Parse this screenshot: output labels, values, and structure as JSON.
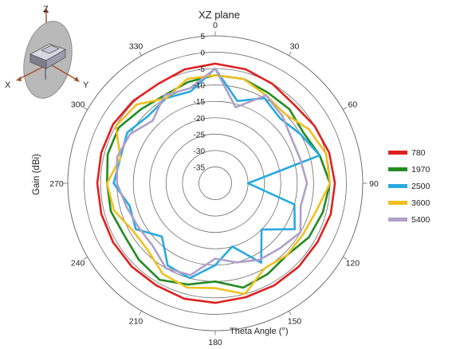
{
  "chart_data": {
    "type": "polar-line",
    "title": "XZ plane",
    "ylabel": "Gain  (dBi)",
    "xlabel": "Theta  Angle (°)",
    "r_range": [
      -40,
      5
    ],
    "r_ticks": [
      5,
      0,
      -5,
      -10,
      -15,
      -20,
      -25,
      -30,
      -35
    ],
    "theta_ticks": [
      0,
      30,
      60,
      90,
      120,
      150,
      180,
      210,
      240,
      270,
      300,
      330
    ],
    "theta_direction": "clockwise from top",
    "grid": true,
    "legend_position": "right",
    "theta": [
      0,
      15,
      30,
      45,
      60,
      75,
      90,
      105,
      120,
      135,
      150,
      165,
      180,
      195,
      210,
      225,
      240,
      255,
      270,
      285,
      300,
      315,
      330,
      345
    ],
    "series": [
      {
        "name": "780",
        "color": "#e02020",
        "r": [
          -3.5,
          -4,
          -5,
          -6,
          -5,
          -4,
          -3.5,
          -3.5,
          -4,
          -4,
          -4,
          -4,
          -3.5,
          -3.5,
          -4,
          -4,
          -4,
          -4,
          -4,
          -4,
          -4,
          -4.5,
          -5,
          -4
        ]
      },
      {
        "name": "1970",
        "color": "#228b22",
        "r": [
          -7,
          -7,
          -8,
          -8,
          -9,
          -7,
          -5,
          -6,
          -7,
          -9,
          -8,
          -7,
          -10,
          -8,
          -6,
          -7,
          -8,
          -7,
          -7,
          -6,
          -6,
          -8,
          -9,
          -8
        ]
      },
      {
        "name": "2500",
        "color": "#29a9e0",
        "r": [
          -5,
          -14,
          -10,
          -12,
          -10,
          -7,
          -30,
          -15,
          -12,
          -20,
          -12,
          -20,
          -15,
          -10,
          -11,
          -17,
          -12,
          -13,
          -9,
          -10,
          -9,
          -11,
          -10,
          -11
        ]
      },
      {
        "name": "3600",
        "color": "#f0c020",
        "r": [
          -7,
          -7,
          -9,
          -10,
          -7,
          -5,
          -5,
          -8,
          -9,
          -9,
          -10,
          -5,
          -8,
          -7,
          -8,
          -11,
          -11,
          -8,
          -7,
          -10,
          -5,
          -6,
          -10,
          -7
        ]
      },
      {
        "name": "5400",
        "color": "#b0a0c8",
        "r": [
          -5,
          -16,
          -9,
          -11,
          -13,
          -13,
          -12,
          -13,
          -10,
          -12,
          -13,
          -15,
          -17,
          -11,
          -10,
          -13,
          -13,
          -12,
          -10,
          -9,
          -10,
          -13,
          -9,
          -10
        ]
      }
    ]
  }
}
